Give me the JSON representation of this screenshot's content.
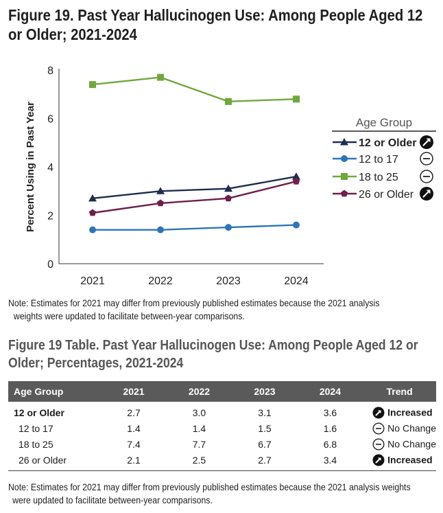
{
  "title": "Figure 19. Past Year Hallucinogen Use: Among People Aged 12 or Older; 2021-2024",
  "chart_data": {
    "type": "line",
    "title": "Figure 19. Past Year Hallucinogen Use: Among People Aged 12 or Older; 2021-2024",
    "ylabel": "Percent Using in Past Year",
    "xlabel": "",
    "x": [
      "2021",
      "2022",
      "2023",
      "2024"
    ],
    "ylim": [
      0,
      8
    ],
    "yticks": [
      "0",
      "2",
      "4",
      "6",
      "8"
    ],
    "legend_title": "Age Group",
    "legend_position": "right",
    "grid": false,
    "series": [
      {
        "name": "12 or Older",
        "values": [
          2.7,
          3.0,
          3.1,
          3.6
        ],
        "color": "#1f2d4d",
        "marker": "triangle",
        "trend": "increased"
      },
      {
        "name": "12 to 17",
        "values": [
          1.4,
          1.4,
          1.5,
          1.6
        ],
        "color": "#2f75b5",
        "marker": "circle",
        "trend": "no-change"
      },
      {
        "name": "18 to 25",
        "values": [
          7.4,
          7.7,
          6.7,
          6.8
        ],
        "color": "#70a83c",
        "marker": "square",
        "trend": "no-change"
      },
      {
        "name": "26 or Older",
        "values": [
          2.1,
          2.5,
          2.7,
          3.4
        ],
        "color": "#6e1f4b",
        "marker": "pentagon",
        "trend": "increased"
      }
    ]
  },
  "note_chart": {
    "line1": "Note: Estimates for 2021 may differ from previously published estimates because the 2021 analysis",
    "line2": "weights were updated to facilitate between-year comparisons."
  },
  "table": {
    "title": "Figure 19 Table. Past Year Hallucinogen Use: Among People Aged 12 or Older; Percentages, 2021-2024",
    "headers": [
      "Age Group",
      "2021",
      "2022",
      "2023",
      "2024",
      "Trend"
    ],
    "rows": [
      {
        "group": "12 or Older",
        "v2021": "2.7",
        "v2022": "3.0",
        "v2023": "3.1",
        "v2024": "3.6",
        "trend": "Increased"
      },
      {
        "group": "12 to 17",
        "v2021": "1.4",
        "v2022": "1.4",
        "v2023": "1.5",
        "v2024": "1.6",
        "trend": "No Change"
      },
      {
        "group": "18 to 25",
        "v2021": "7.4",
        "v2022": "7.7",
        "v2023": "6.7",
        "v2024": "6.8",
        "trend": "No Change"
      },
      {
        "group": "26 or Older",
        "v2021": "2.1",
        "v2022": "2.5",
        "v2023": "2.7",
        "v2024": "3.4",
        "trend": "Increased"
      }
    ]
  },
  "note_table": {
    "line1": "Note: Estimates for 2021 may differ from previously published estimates because the 2021 analysis weights",
    "line2": "were updated to facilitate between-year comparisons."
  },
  "icons": {
    "increased": "increase-arrow-icon",
    "no_change": "no-change-icon"
  }
}
